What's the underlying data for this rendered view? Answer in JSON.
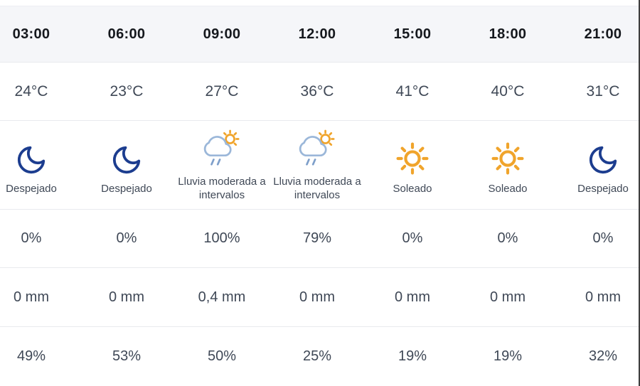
{
  "table": {
    "header_bg": "#f5f6f9",
    "border_color": "#e9eaee",
    "time_text_color": "#15181d",
    "value_text_color": "#3f4856",
    "icon_colors": {
      "moon": "#1c3d8f",
      "sun": "#f0a42b",
      "cloud": "#9bb7d9",
      "rain": "#7e9fca"
    },
    "row_labels": {
      "row1": "time",
      "row2": "temperature",
      "row3": "condition",
      "row4": "precipitation_probability",
      "row5": "precipitation_amount",
      "row6": "humidity"
    },
    "columns": [
      {
        "time": "03:00",
        "temperature": "24°C",
        "icon": "moon-icon",
        "condition": "Despejado",
        "precip_probability": "0%",
        "precip_amount": "0 mm",
        "humidity": "49%"
      },
      {
        "time": "06:00",
        "temperature": "23°C",
        "icon": "moon-icon",
        "condition": "Despejado",
        "precip_probability": "0%",
        "precip_amount": "0 mm",
        "humidity": "53%"
      },
      {
        "time": "09:00",
        "temperature": "27°C",
        "icon": "cloud-sun-rain-icon",
        "condition": "Lluvia moderada a intervalos",
        "precip_probability": "100%",
        "precip_amount": "0,4 mm",
        "humidity": "50%"
      },
      {
        "time": "12:00",
        "temperature": "36°C",
        "icon": "cloud-sun-rain-icon",
        "condition": "Lluvia moderada a intervalos",
        "precip_probability": "79%",
        "precip_amount": "0 mm",
        "humidity": "25%"
      },
      {
        "time": "15:00",
        "temperature": "41°C",
        "icon": "sun-icon",
        "condition": "Soleado",
        "precip_probability": "0%",
        "precip_amount": "0 mm",
        "humidity": "19%"
      },
      {
        "time": "18:00",
        "temperature": "40°C",
        "icon": "sun-icon",
        "condition": "Soleado",
        "precip_probability": "0%",
        "precip_amount": "0 mm",
        "humidity": "19%"
      },
      {
        "time": "21:00",
        "temperature": "31°C",
        "icon": "moon-icon",
        "condition": "Despejado",
        "precip_probability": "0%",
        "precip_amount": "0 mm",
        "humidity": "32%"
      }
    ]
  }
}
